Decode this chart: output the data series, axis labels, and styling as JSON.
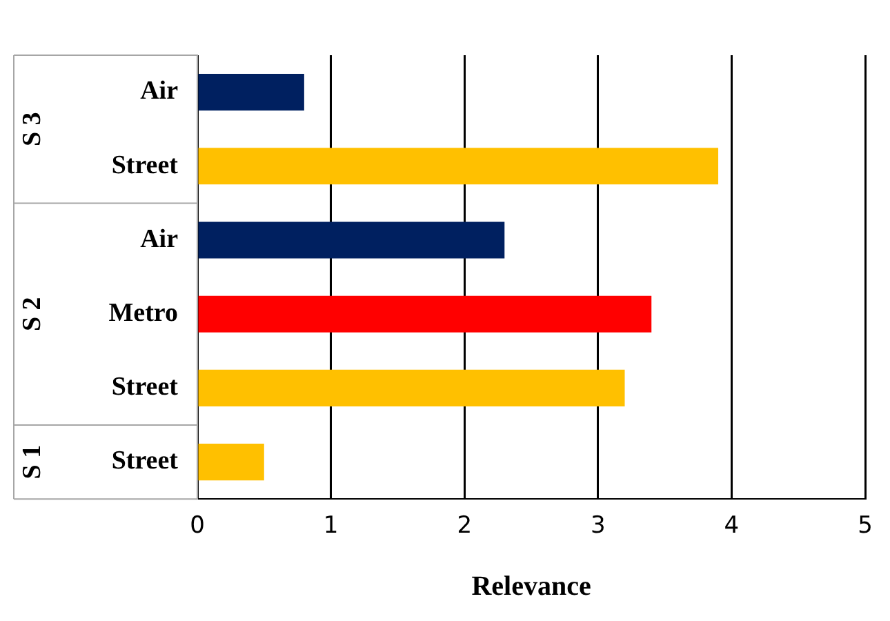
{
  "chart_data": {
    "type": "bar",
    "orientation": "horizontal",
    "xlabel": "Relevance",
    "categories": [
      "Air",
      "Street",
      "Air",
      "Metro",
      "Street",
      "Street"
    ],
    "values": [
      0.8,
      3.9,
      2.3,
      3.4,
      3.2,
      0.5
    ],
    "colors": [
      "#002060",
      "#ffc000",
      "#002060",
      "#ff0000",
      "#ffc000",
      "#ffc000"
    ],
    "xlim": [
      0,
      5
    ],
    "xticks": [
      0,
      1,
      2,
      3,
      4,
      5
    ],
    "grid": "x",
    "legend": false,
    "annotations": [
      "S 3",
      "S 2",
      "S 1"
    ]
  }
}
